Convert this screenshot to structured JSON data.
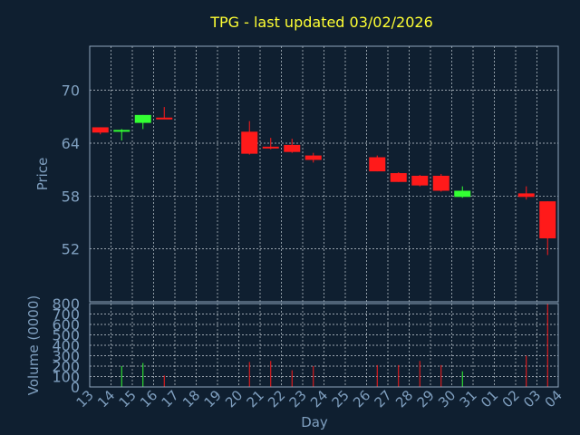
{
  "chart_data": {
    "type": "candlestick",
    "title": "TPG - last updated 03/02/2026",
    "xlabel": "Day",
    "price_ylabel": "Price",
    "volume_ylabel": "Volume (0000)",
    "price_ticks": [
      52,
      58,
      64,
      70
    ],
    "price_ylim": [
      46,
      75
    ],
    "volume_ticks": [
      0,
      100,
      200,
      300,
      400,
      500,
      600,
      700,
      800
    ],
    "volume_ylim": [
      0,
      800
    ],
    "x_ticks": [
      "13",
      "14",
      "15",
      "16",
      "17",
      "18",
      "19",
      "20",
      "21",
      "22",
      "23",
      "24",
      "25",
      "26",
      "27",
      "28",
      "29",
      "30",
      "31",
      "01",
      "02",
      "03",
      "04"
    ],
    "candles": [
      {
        "day": "13",
        "open": 65.8,
        "high": 65.8,
        "low": 65.0,
        "close": 65.2,
        "volume": 0
      },
      {
        "day": "14",
        "open": 65.3,
        "high": 65.6,
        "low": 64.3,
        "close": 65.5,
        "volume": 200
      },
      {
        "day": "15",
        "open": 66.3,
        "high": 67.2,
        "low": 65.6,
        "close": 67.2,
        "volume": 230
      },
      {
        "day": "16",
        "open": 66.9,
        "high": 68.1,
        "low": 66.8,
        "close": 66.8,
        "volume": 110
      },
      {
        "day": "20",
        "open": 65.3,
        "high": 66.5,
        "low": 62.7,
        "close": 62.8,
        "volume": 240
      },
      {
        "day": "21",
        "open": 63.6,
        "high": 64.6,
        "low": 63.3,
        "close": 63.4,
        "volume": 250
      },
      {
        "day": "22",
        "open": 63.8,
        "high": 64.5,
        "low": 62.9,
        "close": 63.0,
        "volume": 160
      },
      {
        "day": "23",
        "open": 62.6,
        "high": 62.9,
        "low": 61.8,
        "close": 62.1,
        "volume": 200
      },
      {
        "day": "26",
        "open": 62.4,
        "high": 62.6,
        "low": 60.8,
        "close": 60.8,
        "volume": 210
      },
      {
        "day": "27",
        "open": 60.6,
        "high": 60.7,
        "low": 59.6,
        "close": 59.6,
        "volume": 210
      },
      {
        "day": "28",
        "open": 60.3,
        "high": 60.4,
        "low": 59.1,
        "close": 59.2,
        "volume": 250
      },
      {
        "day": "29",
        "open": 60.3,
        "high": 60.5,
        "low": 58.5,
        "close": 58.6,
        "volume": 210
      },
      {
        "day": "30",
        "open": 57.9,
        "high": 59.1,
        "low": 57.8,
        "close": 58.6,
        "volume": 150
      },
      {
        "day": "02",
        "open": 58.3,
        "high": 59.1,
        "low": 57.6,
        "close": 57.9,
        "volume": 300
      },
      {
        "day": "03",
        "open": 57.4,
        "high": 57.4,
        "low": 51.3,
        "close": 53.2,
        "volume": 800
      }
    ],
    "colors": {
      "up": "#33ff33",
      "down": "#ff1a1a",
      "background": "#0f1f30",
      "text": "#7f9fbf",
      "title": "#ffff33"
    }
  }
}
